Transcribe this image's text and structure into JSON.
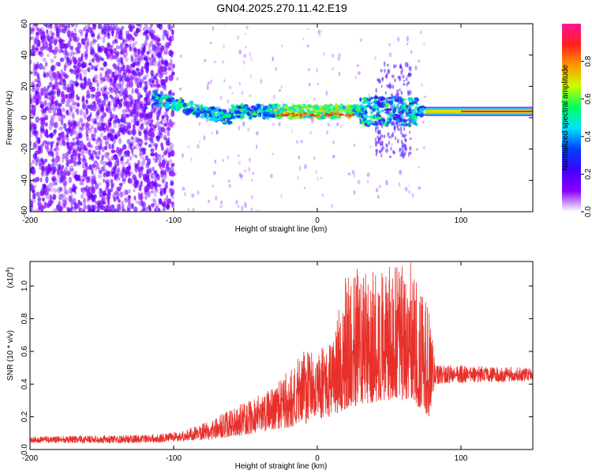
{
  "title": "GN04.2025.270.11.42.E19",
  "colors": {
    "line": "#e8302a",
    "axis": "#000000",
    "cmap": [
      "#ffffff",
      "#8b00ff",
      "#3f00ff",
      "#0040ff",
      "#00e0ff",
      "#00ff60",
      "#c8ff00",
      "#ff9900",
      "#ff1e1e",
      "#ff1493"
    ]
  },
  "chart_data": [
    {
      "type": "heatmap",
      "xlabel": "Height of straight line (km)",
      "ylabel": "Frequency (Hz)",
      "xlim": [
        -200,
        150
      ],
      "ylim": [
        -60,
        60
      ],
      "xticks": [
        -200,
        -100,
        0,
        100
      ],
      "yticks": [
        -60,
        -40,
        -20,
        0,
        20,
        40,
        60
      ],
      "colorbar": {
        "label": "Normalized spectral amplitude",
        "range": [
          0,
          1
        ],
        "ticks": [
          0.0,
          0.2,
          0.4,
          0.6,
          0.8
        ]
      },
      "features": [
        {
          "x_from": -200,
          "x_to": -100,
          "description_values": "broadband noise, amplitude ~0.05-0.15"
        },
        {
          "x_from": -115,
          "x_to": 75,
          "center_freq_hz": 4,
          "amplitude": 0.5
        },
        {
          "x_from": 75,
          "x_to": 150,
          "center_freq_hz": 4,
          "amplitude": 1.0
        }
      ]
    },
    {
      "type": "line",
      "xlabel": "Height of straight line (km)",
      "ylabel": "SNR (10 * v/v)",
      "multiplier": "(x10",
      "multiplier_exp": "4",
      "multiplier_close": ")",
      "xlim": [
        -200,
        150
      ],
      "ylim": [
        0,
        1.15
      ],
      "xticks": [
        -200,
        -100,
        0,
        100
      ],
      "yticks": [
        0.0,
        0.2,
        0.4,
        0.6,
        0.8,
        1.0
      ],
      "envelope": [
        {
          "x": -200,
          "base": 0.04,
          "peak": 0.08
        },
        {
          "x": -120,
          "base": 0.04,
          "peak": 0.09
        },
        {
          "x": -95,
          "base": 0.05,
          "peak": 0.11
        },
        {
          "x": -75,
          "base": 0.06,
          "peak": 0.18
        },
        {
          "x": -55,
          "base": 0.08,
          "peak": 0.27
        },
        {
          "x": -30,
          "base": 0.12,
          "peak": 0.38
        },
        {
          "x": -10,
          "base": 0.15,
          "peak": 0.6
        },
        {
          "x": 10,
          "base": 0.2,
          "peak": 0.65
        },
        {
          "x": 20,
          "base": 0.25,
          "peak": 1.1
        },
        {
          "x": 45,
          "base": 0.3,
          "peak": 1.12
        },
        {
          "x": 65,
          "base": 0.3,
          "peak": 1.15
        },
        {
          "x": 78,
          "base": 0.2,
          "peak": 0.85
        },
        {
          "x": 82,
          "base": 0.4,
          "peak": 0.52
        },
        {
          "x": 150,
          "base": 0.42,
          "peak": 0.5
        }
      ]
    }
  ]
}
